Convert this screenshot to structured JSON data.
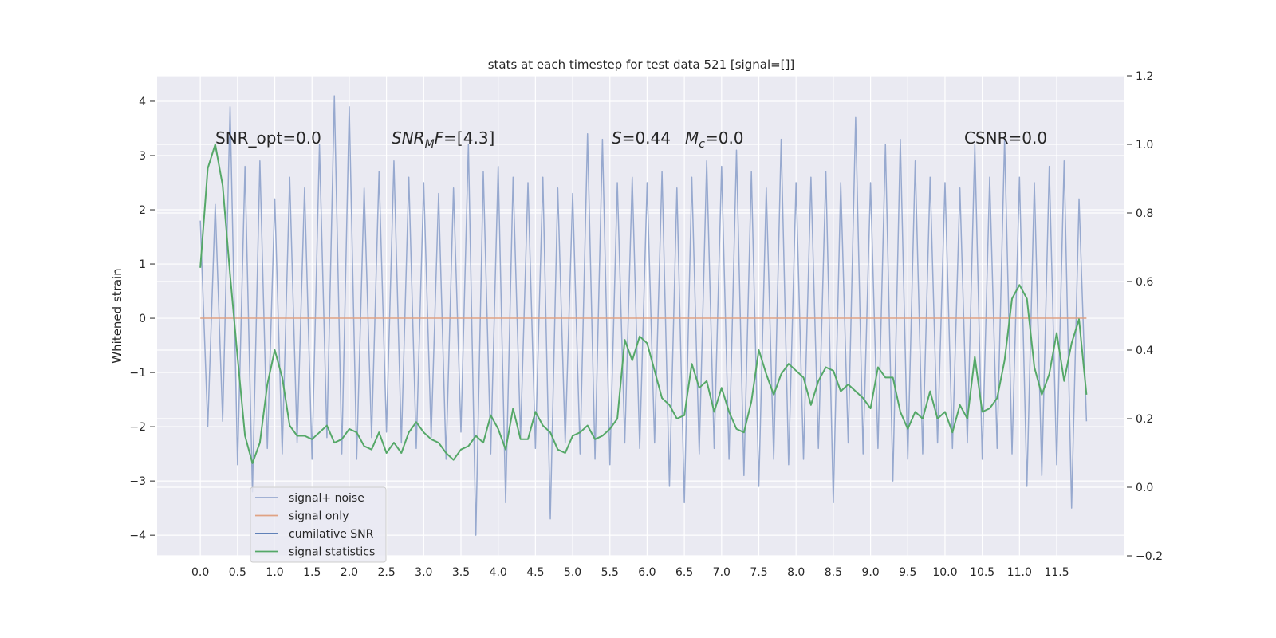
{
  "chart_data": {
    "type": "line",
    "title": "stats at each timestep for test data 521 [signal=[]]",
    "ylabel": "Whitened strain",
    "x": [
      0,
      0.1,
      0.2,
      0.3,
      0.4,
      0.5,
      0.6,
      0.7,
      0.8,
      0.9,
      1,
      1.1,
      1.2,
      1.3,
      1.4,
      1.5,
      1.6,
      1.7,
      1.8,
      1.9,
      2,
      2.1,
      2.2,
      2.3,
      2.4,
      2.5,
      2.6,
      2.7,
      2.8,
      2.9,
      3,
      3.1,
      3.2,
      3.3,
      3.4,
      3.5,
      3.6,
      3.7,
      3.8,
      3.9,
      4,
      4.1,
      4.2,
      4.3,
      4.4,
      4.5,
      4.6,
      4.7,
      4.8,
      4.9,
      5,
      5.1,
      5.2,
      5.3,
      5.4,
      5.5,
      5.6,
      5.7,
      5.8,
      5.9,
      6,
      6.1,
      6.2,
      6.3,
      6.4,
      6.5,
      6.6,
      6.7,
      6.8,
      6.9,
      7,
      7.1,
      7.2,
      7.3,
      7.4,
      7.5,
      7.6,
      7.7,
      7.8,
      7.9,
      8,
      8.1,
      8.2,
      8.3,
      8.4,
      8.5,
      8.6,
      8.7,
      8.8,
      8.9,
      9,
      9.1,
      9.2,
      9.3,
      9.4,
      9.5,
      9.6,
      9.7,
      9.8,
      9.9,
      10,
      10.1,
      10.2,
      10.3,
      10.4,
      10.5,
      10.6,
      10.7,
      10.8,
      10.9,
      11,
      11.1,
      11.2,
      11.3,
      11.4,
      11.5,
      11.6,
      11.7,
      11.8,
      11.9
    ],
    "series": [
      {
        "name": "signal+ noise",
        "color": "#97a9cf",
        "values": [
          1.8,
          -2.0,
          2.1,
          -1.9,
          3.9,
          -2.7,
          2.8,
          -3.2,
          2.9,
          -2.4,
          2.2,
          -2.5,
          2.6,
          -2.3,
          2.4,
          -2.6,
          3.2,
          -2.2,
          4.1,
          -2.5,
          3.9,
          -2.6,
          2.4,
          -2.2,
          2.7,
          -2.1,
          2.9,
          -2.3,
          2.6,
          -2.4,
          2.5,
          -2.2,
          2.3,
          -2.6,
          2.4,
          -2.1,
          3.2,
          -4.0,
          2.7,
          -2.5,
          2.8,
          -3.4,
          2.6,
          -2.2,
          2.5,
          -2.4,
          2.6,
          -3.7,
          2.4,
          -2.3,
          2.3,
          -2.5,
          3.4,
          -2.6,
          3.3,
          -2.7,
          2.5,
          -2.3,
          2.6,
          -2.4,
          2.5,
          -2.3,
          2.7,
          -3.1,
          2.4,
          -3.4,
          2.6,
          -2.5,
          2.9,
          -2.4,
          2.8,
          -2.6,
          3.1,
          -2.9,
          2.7,
          -3.1,
          2.4,
          -2.6,
          3.3,
          -2.7,
          2.5,
          -2.6,
          2.6,
          -2.4,
          2.7,
          -3.4,
          2.5,
          -2.3,
          3.7,
          -2.5,
          2.5,
          -2.4,
          3.2,
          -3.0,
          3.3,
          -2.6,
          2.9,
          -2.5,
          2.6,
          -2.3,
          2.5,
          -2.4,
          2.4,
          -2.3,
          3.2,
          -2.6,
          2.6,
          -2.4,
          3.3,
          -2.5,
          2.6,
          -3.1,
          2.5,
          -2.9,
          2.8,
          -2.7,
          2.9,
          -3.5,
          2.2,
          -1.9
        ]
      },
      {
        "name": "signal only",
        "color": "#e0a283",
        "x": [
          0,
          11.9
        ],
        "values": [
          0,
          0
        ]
      },
      {
        "name": "cumilative SNR",
        "color": "#4c72b0",
        "x": [],
        "values": []
      },
      {
        "name": "signal statistics",
        "color": "#55a868",
        "axis": "y2",
        "values": [
          0.64,
          0.93,
          1.0,
          0.88,
          0.62,
          0.38,
          0.15,
          0.07,
          0.13,
          0.3,
          0.4,
          0.32,
          0.18,
          0.15,
          0.15,
          0.14,
          0.16,
          0.18,
          0.13,
          0.14,
          0.17,
          0.16,
          0.12,
          0.11,
          0.16,
          0.1,
          0.13,
          0.1,
          0.16,
          0.19,
          0.16,
          0.14,
          0.13,
          0.1,
          0.08,
          0.11,
          0.12,
          0.15,
          0.13,
          0.21,
          0.17,
          0.11,
          0.23,
          0.14,
          0.14,
          0.22,
          0.18,
          0.16,
          0.11,
          0.1,
          0.15,
          0.16,
          0.18,
          0.14,
          0.15,
          0.17,
          0.2,
          0.43,
          0.37,
          0.44,
          0.42,
          0.34,
          0.26,
          0.24,
          0.2,
          0.21,
          0.36,
          0.29,
          0.31,
          0.22,
          0.29,
          0.22,
          0.17,
          0.16,
          0.25,
          0.4,
          0.33,
          0.27,
          0.33,
          0.36,
          0.34,
          0.32,
          0.24,
          0.31,
          0.35,
          0.34,
          0.28,
          0.3,
          0.28,
          0.26,
          0.23,
          0.35,
          0.32,
          0.32,
          0.22,
          0.17,
          0.22,
          0.2,
          0.28,
          0.2,
          0.22,
          0.16,
          0.24,
          0.2,
          0.38,
          0.22,
          0.23,
          0.26,
          0.37,
          0.55,
          0.59,
          0.55,
          0.35,
          0.27,
          0.33,
          0.45,
          0.31,
          0.42,
          0.49,
          0.27
        ]
      }
    ],
    "xlim": [
      -0.58,
      12.41
    ],
    "ylim": [
      -4.38,
      4.47
    ],
    "y2lim": [
      -0.2,
      1.2
    ],
    "xticks": [
      {
        "value": 0,
        "label": "0.0"
      },
      0.5,
      {
        "value": 1,
        "label": "1.0"
      },
      1.5,
      {
        "value": 2,
        "label": "2.0"
      },
      2.5,
      {
        "value": 3,
        "label": "3.0"
      },
      3.5,
      {
        "value": 4,
        "label": "4.0"
      },
      4.5,
      {
        "value": 5,
        "label": "5.0"
      },
      5.5,
      {
        "value": 6,
        "label": "6.0"
      },
      6.5,
      {
        "value": 7,
        "label": "7.0"
      },
      7.5,
      {
        "value": 8,
        "label": "8.0"
      },
      8.5,
      {
        "value": 9,
        "label": "9.0"
      },
      9.5,
      {
        "value": 10,
        "label": "10.0"
      },
      10.5,
      {
        "value": 11,
        "label": "11.0"
      },
      11.5
    ],
    "yticks": [
      {
        "value": -4,
        "label": "−4"
      },
      {
        "value": -3,
        "label": "−3"
      },
      {
        "value": -2,
        "label": "−2"
      },
      {
        "value": -1,
        "label": "−1"
      },
      0,
      1,
      2,
      3,
      4
    ],
    "y2ticks": [
      {
        "value": -0.2,
        "label": "−0.2"
      },
      {
        "value": 0,
        "label": "0.0"
      },
      0.2,
      0.4,
      0.6,
      0.8,
      {
        "value": 1,
        "label": "1.0"
      },
      1.2
    ],
    "grid": true,
    "legend": "lower left",
    "annotations": [
      [
        {
          "text": "SNR_opt=0.0"
        }
      ],
      [
        {
          "text": "SNR",
          "style": "italic"
        },
        {
          "text": "M",
          "style": "italic-sub"
        },
        {
          "text": "F",
          "style": "italic"
        },
        {
          "text": "=[4.3]"
        }
      ],
      [
        {
          "text": "S",
          "style": "italic"
        },
        {
          "text": "=0.44"
        }
      ],
      [
        {
          "text": "M",
          "style": "italic"
        },
        {
          "text": "c",
          "style": "italic-sub"
        },
        {
          "text": "=0.0"
        }
      ],
      [
        {
          "text": "CSNR=0.0"
        }
      ]
    ]
  }
}
